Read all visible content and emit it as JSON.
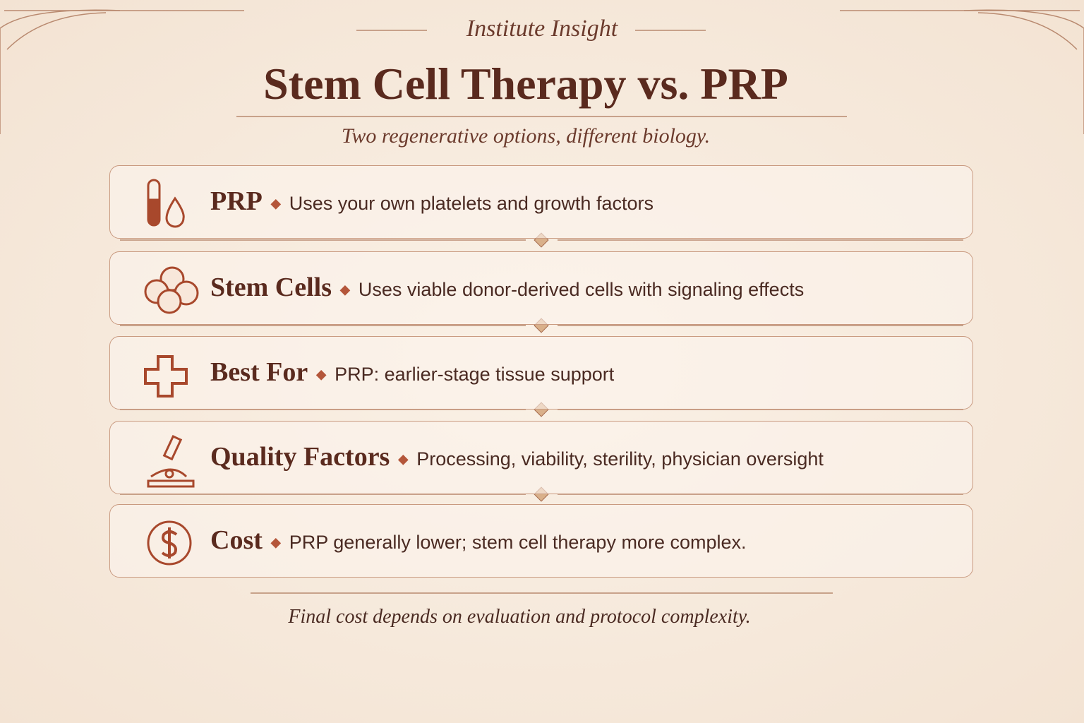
{
  "header": {
    "eyebrow": "Institute Insight",
    "title": "Stem Cell Therapy vs. PRP",
    "subtitle": "Two regenerative options, different biology."
  },
  "rows": [
    {
      "label": "PRP",
      "text": "Uses your own platelets and growth factors"
    },
    {
      "label": "Stem Cells",
      "text": "Uses viable donor-derived cells with signaling effects"
    },
    {
      "label": "Best For",
      "text": "PRP: earlier-stage tissue support"
    },
    {
      "label": "Quality Factors",
      "text": "Processing, viability, sterility, physician oversight"
    },
    {
      "label": "Cost",
      "text": "PRP generally lower; stem cell therapy more complex."
    }
  ],
  "footer": {
    "note": "Final cost depends on evaluation and protocol complexity."
  }
}
